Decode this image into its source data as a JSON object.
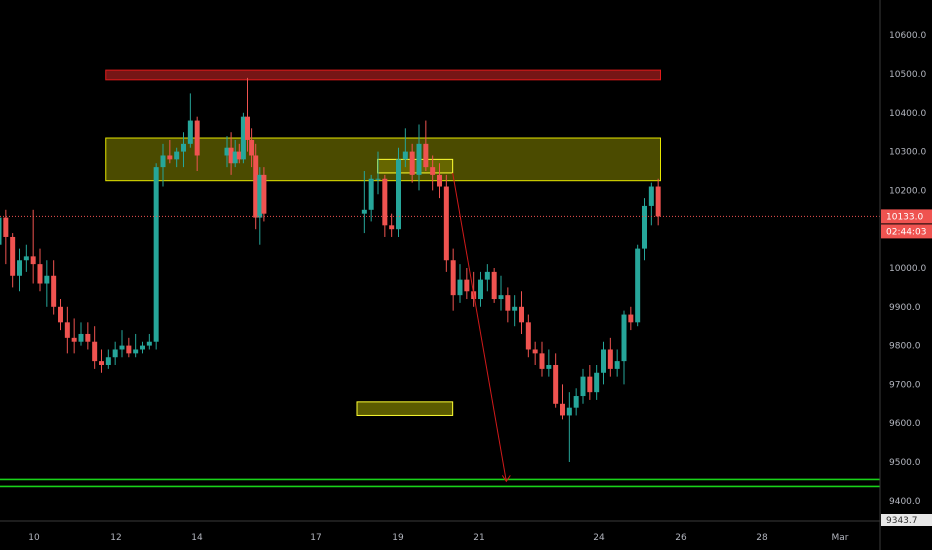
{
  "chart_data": {
    "type": "candlestick",
    "title": "",
    "price_ticks": [
      10600,
      10500,
      10400,
      10300,
      10200,
      10000,
      9900,
      9800,
      9700,
      9600,
      9500,
      9400
    ],
    "price_tick_labels": [
      "10600.0",
      "10500.0",
      "10400.0",
      "10300.0",
      "10200.0",
      "10000.0",
      "9900.0",
      "9800.0",
      "9700.0",
      "9600.0",
      "9500.0",
      "9400.0"
    ],
    "ylim": [
      9330,
      10700
    ],
    "date_ticks": [
      {
        "label": "10",
        "date": "2020-02-10"
      },
      {
        "label": "12",
        "date": "2020-02-12"
      },
      {
        "label": "14",
        "date": "2020-02-14"
      },
      {
        "label": "17",
        "date": "2020-02-17"
      },
      {
        "label": "19",
        "date": "2020-02-19"
      },
      {
        "label": "21",
        "date": "2020-02-21"
      },
      {
        "label": "24",
        "date": "2020-02-24"
      },
      {
        "label": "26",
        "date": "2020-02-26"
      },
      {
        "label": "28",
        "date": "2020-02-28"
      },
      {
        "label": "Mar",
        "date": "2020-03-02"
      }
    ],
    "last_price_label": "10133.0",
    "countdown_label": "02:44:03",
    "partial_bottom_label": "9343.7",
    "colors": {
      "up": "#26a69a",
      "down": "#ef5350",
      "resistance_zone": "#8b1a1a",
      "supply_zone": "#6b6b00",
      "support_line": "#19d219",
      "projection_arrow": "#d11a1a",
      "price_line": "#ef5350"
    },
    "candles": [
      [
        10060,
        10150,
        10030,
        10130
      ],
      [
        10130,
        10150,
        10010,
        10080
      ],
      [
        10080,
        10090,
        9950,
        9980
      ],
      [
        9980,
        10050,
        9940,
        10020
      ],
      [
        10020,
        10060,
        9990,
        10030
      ],
      [
        10030,
        10150,
        9960,
        10010
      ],
      [
        10010,
        10050,
        9940,
        9960
      ],
      [
        9960,
        10020,
        9900,
        9980
      ],
      [
        9980,
        10020,
        9880,
        9900
      ],
      [
        9900,
        9920,
        9840,
        9860
      ],
      [
        9860,
        9900,
        9780,
        9820
      ],
      [
        9820,
        9870,
        9780,
        9810
      ],
      [
        9810,
        9860,
        9800,
        9830
      ],
      [
        9830,
        9860,
        9790,
        9810
      ],
      [
        9810,
        9850,
        9740,
        9760
      ],
      [
        9760,
        9790,
        9730,
        9750
      ],
      [
        9750,
        9790,
        9740,
        9770
      ],
      [
        9770,
        9810,
        9750,
        9790
      ],
      [
        9790,
        9840,
        9770,
        9800
      ],
      [
        9800,
        9820,
        9770,
        9780
      ],
      [
        9780,
        9830,
        9770,
        9790
      ],
      [
        9790,
        9810,
        9780,
        9800
      ],
      [
        9800,
        9830,
        9790,
        9810
      ],
      [
        9810,
        10270,
        9790,
        10260
      ],
      [
        10260,
        10320,
        10210,
        10290
      ],
      [
        10290,
        10330,
        10270,
        10280
      ],
      [
        10280,
        10310,
        10260,
        10300
      ],
      [
        10300,
        10350,
        10260,
        10320
      ],
      [
        10320,
        10450,
        10310,
        10380
      ],
      [
        10380,
        10390,
        10250,
        10290
      ],
      [
        10290,
        10340,
        10260,
        10310
      ],
      [
        10310,
        10350,
        10240,
        10270
      ],
      [
        10270,
        10330,
        10260,
        10300
      ],
      [
        10300,
        10320,
        10270,
        10280
      ],
      [
        10280,
        10400,
        10270,
        10390
      ],
      [
        10390,
        10490,
        10300,
        10330
      ],
      [
        10330,
        10360,
        10260,
        10290
      ],
      [
        10290,
        10320,
        10100,
        10130
      ],
      [
        10130,
        10260,
        10060,
        10240
      ],
      [
        10240,
        10260,
        10120,
        10140
      ],
      [
        10140,
        10250,
        10090,
        10150
      ],
      [
        10150,
        10240,
        10120,
        10230
      ],
      [
        10230,
        10300,
        10190,
        10230
      ],
      [
        10230,
        10240,
        10080,
        10110
      ],
      [
        10110,
        10140,
        10080,
        10100
      ],
      [
        10100,
        10310,
        10080,
        10280
      ],
      [
        10280,
        10360,
        10260,
        10300
      ],
      [
        10300,
        10320,
        10220,
        10240
      ],
      [
        10240,
        10370,
        10200,
        10320
      ],
      [
        10320,
        10380,
        10250,
        10260
      ],
      [
        10260,
        10290,
        10200,
        10240
      ],
      [
        10240,
        10270,
        10180,
        10210
      ],
      [
        10210,
        10240,
        9990,
        10020
      ],
      [
        10020,
        10050,
        9890,
        9930
      ],
      [
        9930,
        10010,
        9910,
        9970
      ],
      [
        9970,
        10000,
        9920,
        9940
      ],
      [
        9940,
        9990,
        9900,
        9920
      ],
      [
        9920,
        9990,
        9900,
        9970
      ],
      [
        9970,
        10010,
        9940,
        9990
      ],
      [
        9990,
        10000,
        9910,
        9920
      ],
      [
        9920,
        9980,
        9890,
        9930
      ],
      [
        9930,
        9950,
        9860,
        9890
      ],
      [
        9890,
        9930,
        9850,
        9900
      ],
      [
        9900,
        9940,
        9830,
        9860
      ],
      [
        9860,
        9880,
        9770,
        9790
      ],
      [
        9790,
        9810,
        9750,
        9780
      ],
      [
        9780,
        9810,
        9720,
        9740
      ],
      [
        9740,
        9790,
        9720,
        9750
      ],
      [
        9750,
        9780,
        9640,
        9650
      ],
      [
        9650,
        9700,
        9610,
        9620
      ],
      [
        9620,
        9680,
        9500,
        9640
      ],
      [
        9640,
        9690,
        9620,
        9670
      ],
      [
        9670,
        9740,
        9650,
        9720
      ],
      [
        9720,
        9750,
        9660,
        9680
      ],
      [
        9680,
        9750,
        9660,
        9730
      ],
      [
        9730,
        9810,
        9700,
        9790
      ],
      [
        9790,
        9820,
        9720,
        9740
      ],
      [
        9740,
        9790,
        9720,
        9760
      ],
      [
        9760,
        9890,
        9700,
        9880
      ],
      [
        9880,
        9900,
        9840,
        9860
      ],
      [
        9860,
        10060,
        9850,
        10050
      ],
      [
        10050,
        10180,
        10020,
        10160
      ],
      [
        10160,
        10220,
        10110,
        10210
      ],
      [
        10210,
        10230,
        10110,
        10133
      ]
    ],
    "annotations": [
      {
        "kind": "zone",
        "name": "resistance-zone",
        "start": "2020-02-11 18:00",
        "end": "2020-02-25 12:00",
        "top": 10510,
        "bottom": 10485
      },
      {
        "kind": "zone",
        "name": "supply-zone",
        "start": "2020-02-11 18:00",
        "end": "2020-02-25 12:00",
        "top": 10335,
        "bottom": 10225
      },
      {
        "kind": "zone",
        "name": "highlight-box-top",
        "start": "2020-02-18 12:00",
        "end": "2020-02-20 08:00",
        "top": 10280,
        "bottom": 10245
      },
      {
        "kind": "zone",
        "name": "highlight-box-bottom",
        "start": "2020-02-18 00:00",
        "end": "2020-02-20 08:00",
        "top": 9655,
        "bottom": 9620
      }
    ],
    "support_lines": [
      9455,
      9437
    ],
    "projection_arrow": {
      "from": {
        "date": "2020-02-20 08:00",
        "price": 10245
      },
      "to": {
        "date": "2020-02-21 16:00",
        "price": 9450
      }
    }
  }
}
